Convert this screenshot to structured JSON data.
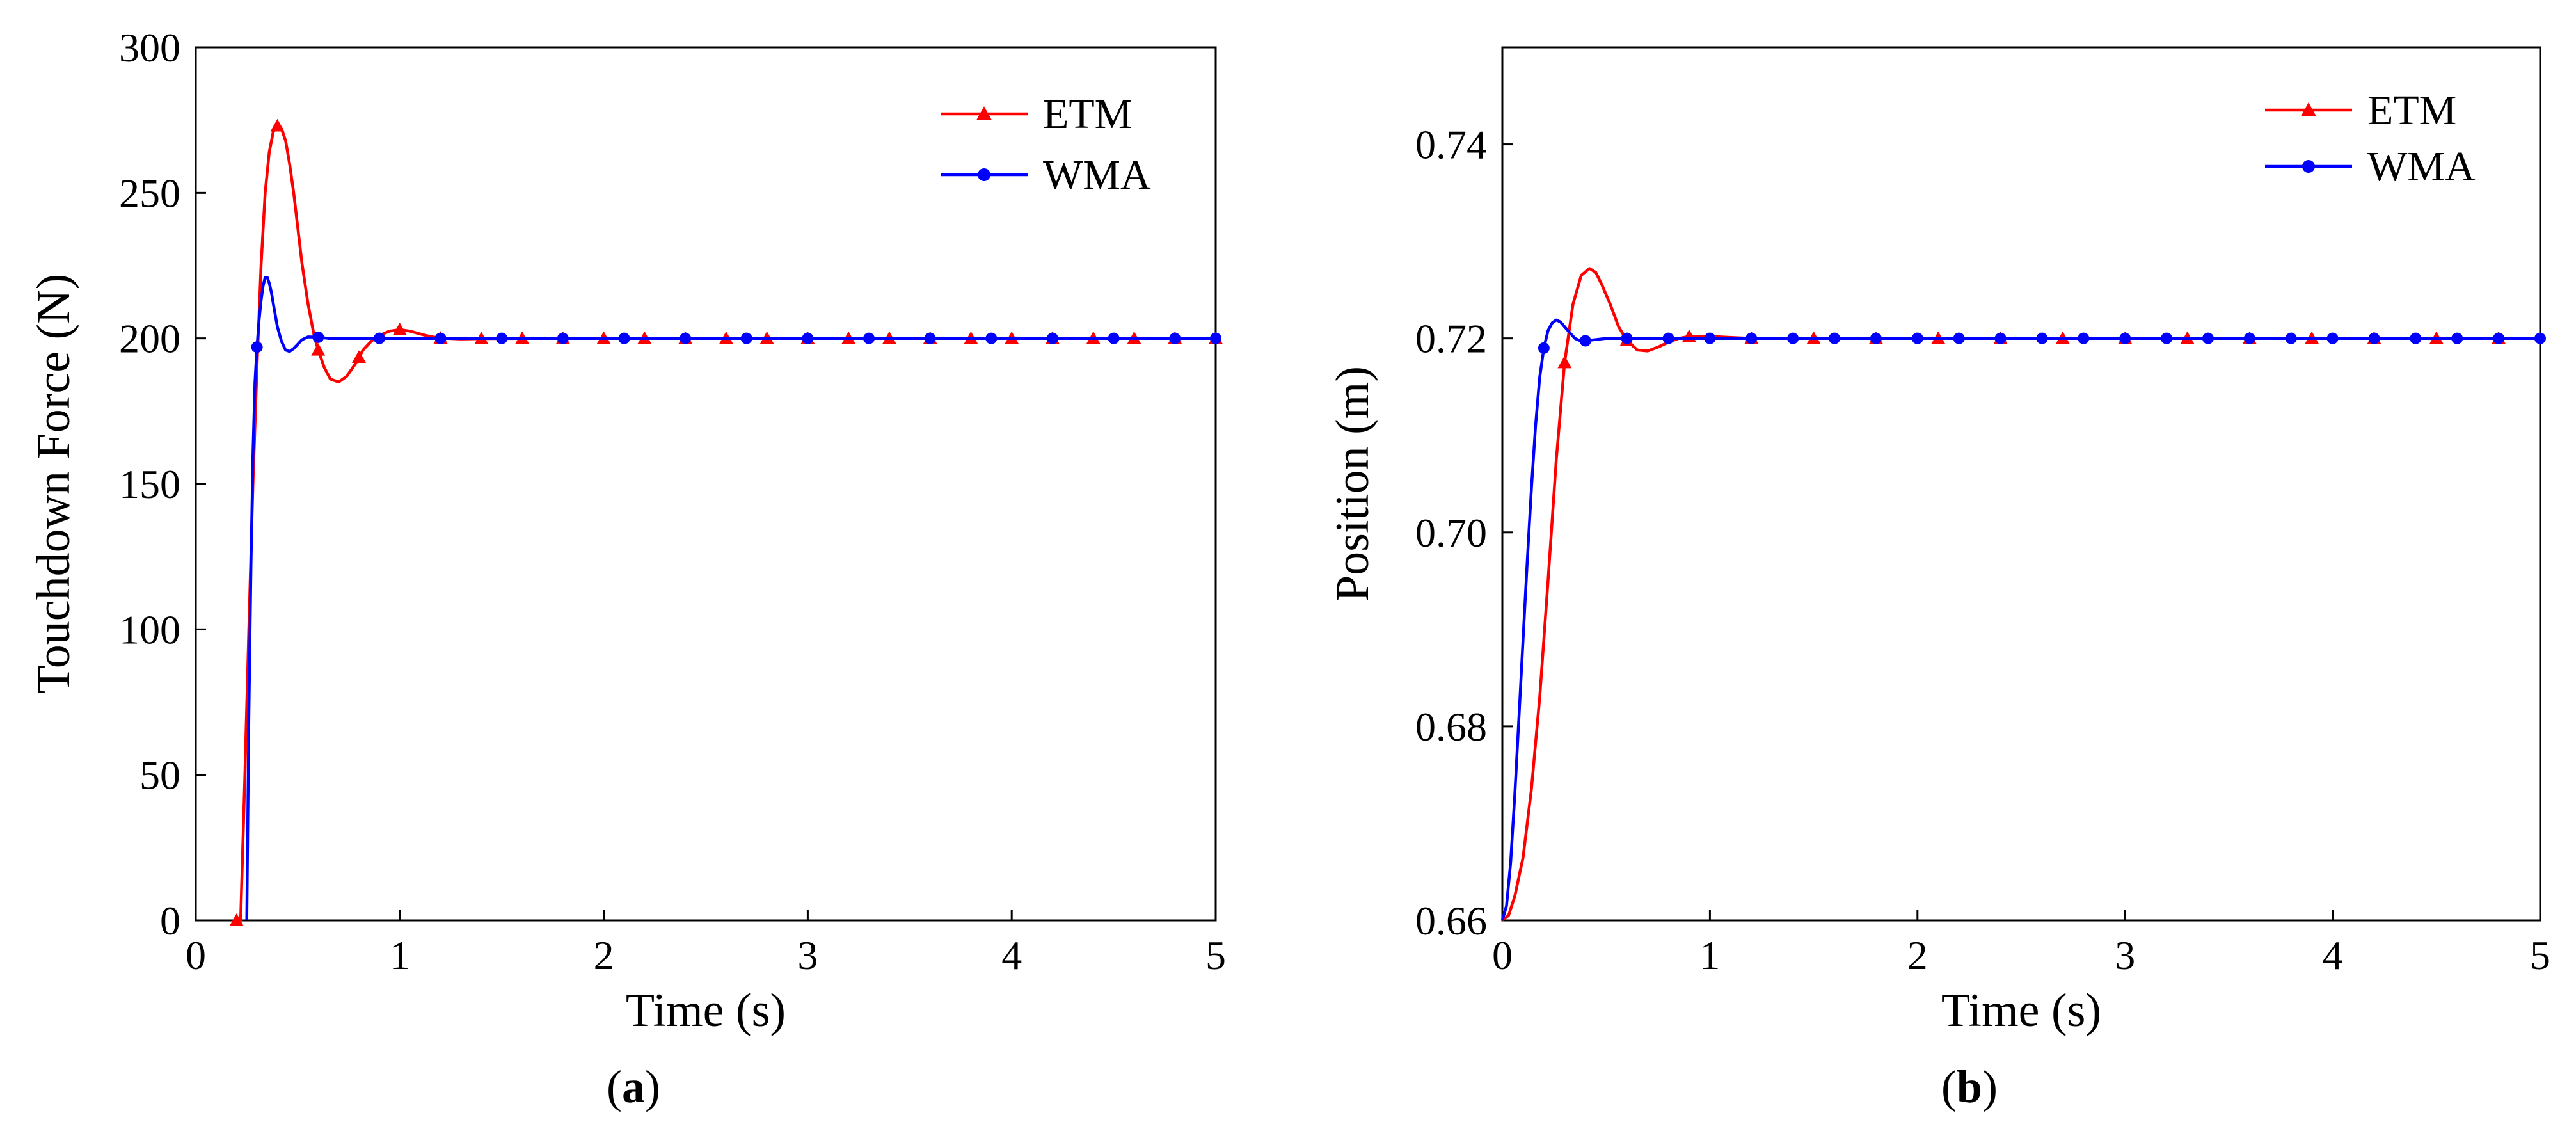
{
  "chart_data": [
    {
      "id": "a",
      "type": "line",
      "panel_label": "(a)",
      "panel_letter": "a",
      "title": "",
      "xlabel": "Time (s)",
      "ylabel": "Touchdown Force (N)",
      "xlim": [
        0,
        5
      ],
      "ylim": [
        0,
        300
      ],
      "xticks": [
        0,
        1,
        2,
        3,
        4,
        5
      ],
      "yticks": [
        0,
        50,
        100,
        150,
        200,
        250,
        300
      ],
      "grid": false,
      "legend_position": "top-right",
      "series": [
        {
          "name": "ETM",
          "color": "#ff0000",
          "marker": "triangle",
          "x": [
            0.2,
            0.22,
            0.24,
            0.26,
            0.28,
            0.3,
            0.32,
            0.34,
            0.36,
            0.38,
            0.4,
            0.42,
            0.44,
            0.46,
            0.48,
            0.5,
            0.52,
            0.55,
            0.58,
            0.6,
            0.63,
            0.66,
            0.7,
            0.74,
            0.78,
            0.82,
            0.86,
            0.9,
            0.95,
            1.0,
            1.05,
            1.1,
            1.15,
            1.2,
            1.3,
            1.4,
            1.6,
            1.8,
            2.0,
            2.5,
            3.0,
            3.5,
            4.0,
            4.5,
            5.0
          ],
          "values": [
            0,
            0,
            48,
            100,
            150,
            190,
            225,
            250,
            264,
            271,
            273,
            272,
            268,
            260,
            250,
            238,
            226,
            212,
            201,
            196,
            190,
            186,
            185,
            187,
            191,
            196,
            199,
            201,
            202.5,
            203,
            202.5,
            201.5,
            200.6,
            200.1,
            199.8,
            199.9,
            200,
            200,
            200,
            200,
            200,
            200,
            200,
            200,
            200
          ],
          "marker_x": [
            0.2,
            0.4,
            0.6,
            0.8,
            1.0,
            1.2,
            1.4,
            1.6,
            1.8,
            2.0,
            2.2,
            2.4,
            2.6,
            2.8,
            3.0,
            3.2,
            3.4,
            3.6,
            3.8,
            4.0,
            4.2,
            4.4,
            4.6,
            4.8,
            5.0
          ]
        },
        {
          "name": "WMA",
          "color": "#0000ff",
          "marker": "circle",
          "x": [
            0.25,
            0.26,
            0.27,
            0.28,
            0.29,
            0.3,
            0.31,
            0.32,
            0.33,
            0.34,
            0.35,
            0.36,
            0.37,
            0.38,
            0.39,
            0.4,
            0.42,
            0.44,
            0.46,
            0.48,
            0.5,
            0.52,
            0.55,
            0.6,
            0.65,
            0.7,
            0.8,
            1.0,
            1.5,
            2.0,
            3.0,
            4.0,
            5.0
          ],
          "values": [
            0,
            70,
            120,
            160,
            185,
            197,
            206,
            213,
            218,
            221,
            221,
            219,
            216,
            212,
            208,
            204,
            199,
            196,
            195.5,
            196.5,
            198,
            199.5,
            200.5,
            200.4,
            200,
            200,
            200,
            200,
            200,
            200,
            200,
            200,
            200
          ],
          "marker_x": [
            0.3,
            0.6,
            0.9,
            1.2,
            1.5,
            1.8,
            2.1,
            2.4,
            2.7,
            3.0,
            3.3,
            3.6,
            3.9,
            4.2,
            4.5,
            4.8,
            5.0
          ]
        }
      ]
    },
    {
      "id": "b",
      "type": "line",
      "panel_label": "(b)",
      "panel_letter": "b",
      "title": "",
      "xlabel": "Time (s)",
      "ylabel": "Position (m)",
      "xlim": [
        0,
        5
      ],
      "ylim": [
        0.66,
        0.75
      ],
      "xticks": [
        0,
        1,
        2,
        3,
        4,
        5
      ],
      "yticks": [
        "0.66",
        "0.68",
        "0.70",
        "0.72",
        "0.74"
      ],
      "grid": false,
      "legend_position": "top-right",
      "series": [
        {
          "name": "ETM",
          "color": "#ff0000",
          "marker": "triangle",
          "x": [
            0,
            0.03,
            0.06,
            0.1,
            0.14,
            0.18,
            0.22,
            0.26,
            0.3,
            0.34,
            0.38,
            0.42,
            0.45,
            0.48,
            0.52,
            0.56,
            0.6,
            0.65,
            0.7,
            0.75,
            0.8,
            0.85,
            0.9,
            1.0,
            1.2,
            1.5,
            2.0,
            3.0,
            4.0,
            5.0
          ],
          "values": [
            0.66,
            0.6605,
            0.6625,
            0.6665,
            0.6735,
            0.683,
            0.695,
            0.7075,
            0.7175,
            0.7235,
            0.7265,
            0.7272,
            0.7268,
            0.7255,
            0.7235,
            0.7212,
            0.7198,
            0.7188,
            0.7187,
            0.7191,
            0.7196,
            0.72,
            0.7202,
            0.7202,
            0.72,
            0.72,
            0.72,
            0.72,
            0.72,
            0.72
          ],
          "marker_x": [
            0.3,
            0.6,
            0.9,
            1.2,
            1.5,
            1.8,
            2.1,
            2.4,
            2.7,
            3.0,
            3.3,
            3.6,
            3.9,
            4.2,
            4.5,
            4.8
          ]
        },
        {
          "name": "WMA",
          "color": "#0000ff",
          "marker": "circle",
          "x": [
            0,
            0.02,
            0.04,
            0.06,
            0.08,
            0.1,
            0.12,
            0.14,
            0.16,
            0.18,
            0.2,
            0.22,
            0.24,
            0.26,
            0.28,
            0.3,
            0.32,
            0.35,
            0.38,
            0.42,
            0.5,
            0.6,
            1.0,
            2.0,
            3.0,
            4.0,
            5.0
          ],
          "values": [
            0.66,
            0.6615,
            0.666,
            0.673,
            0.681,
            0.689,
            0.697,
            0.7045,
            0.711,
            0.716,
            0.719,
            0.7208,
            0.7216,
            0.7219,
            0.7217,
            0.7212,
            0.7207,
            0.72,
            0.7197,
            0.7198,
            0.72,
            0.72,
            0.72,
            0.72,
            0.72,
            0.72,
            0.72
          ],
          "marker_x": [
            0.2,
            0.4,
            0.6,
            0.8,
            1.0,
            1.2,
            1.4,
            1.6,
            1.8,
            2.0,
            2.2,
            2.4,
            2.6,
            2.8,
            3.0,
            3.2,
            3.4,
            3.6,
            3.8,
            4.0,
            4.2,
            4.4,
            4.6,
            4.8,
            5.0
          ]
        }
      ]
    }
  ]
}
